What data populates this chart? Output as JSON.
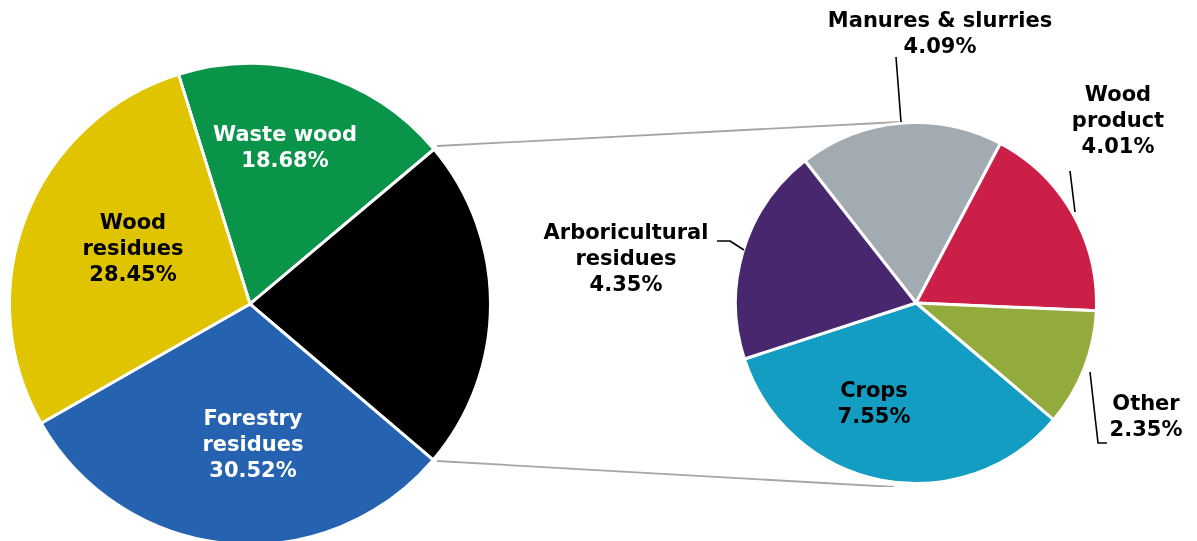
{
  "chart_data": [
    {
      "type": "pie",
      "categories": [
        "Waste wood",
        null,
        "Forestry residues",
        "Wood residues"
      ],
      "values": [
        18.68,
        22.35,
        30.52,
        28.45
      ],
      "value_labels": [
        "18.68%",
        null,
        "30.52%",
        "28.45%"
      ],
      "colors": [
        "#09944a",
        "#000000",
        "#2563b0",
        "#e0c400"
      ]
    },
    {
      "type": "pie",
      "categories": [
        "Manures & slurries",
        "Wood product",
        "Other",
        "Crops",
        "Arboricultural residues"
      ],
      "values": [
        4.09,
        4.01,
        2.35,
        7.55,
        4.35
      ],
      "value_labels": [
        "4.09%",
        "4.01%",
        "2.35%",
        "7.55%",
        "4.35%"
      ],
      "colors": [
        "#a2abb1",
        "#cc1f47",
        "#92ab3c",
        "#139dc3",
        "#47286f"
      ]
    }
  ]
}
